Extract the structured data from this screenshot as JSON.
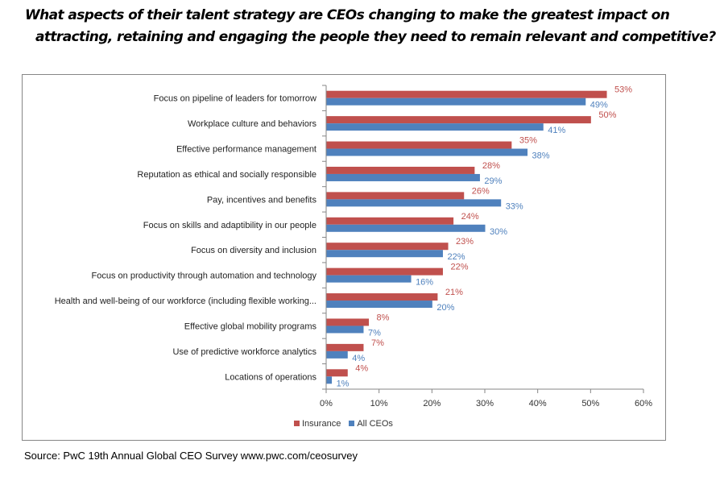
{
  "chart_data": {
    "type": "bar",
    "orientation": "horizontal",
    "title": "What aspects of their talent strategy are CEOs changing to make the greatest impact on attracting, retaining and engaging the people they need to remain relevant and competitive?",
    "title_lines": [
      "What aspects of their talent strategy are CEOs changing to make the greatest impact on",
      "attracting, retaining and engaging the people they need to remain relevant and competitive?"
    ],
    "categories": [
      "Focus on pipeline of leaders for tomorrow",
      "Workplace culture and behaviors",
      "Effective performance management",
      "Reputation as ethical and socially responsible",
      "Pay, incentives and benefits",
      "Focus on skills and adaptibility in our people",
      "Focus on diversity and inclusion",
      "Focus on productivity through automation and technology",
      "Health and well-being of our workforce (including flexible working...",
      "Effective global mobility programs",
      "Use of predictive workforce analytics",
      "Locations of operations"
    ],
    "series": [
      {
        "name": "Insurance",
        "color": "#C0504D",
        "values": [
          53,
          50,
          35,
          28,
          26,
          24,
          23,
          22,
          21,
          8,
          7,
          4
        ]
      },
      {
        "name": "All CEOs",
        "color": "#4F81BD",
        "values": [
          49,
          41,
          38,
          29,
          33,
          30,
          22,
          16,
          20,
          7,
          4,
          1
        ]
      }
    ],
    "xlim": [
      0,
      60
    ],
    "xticks": [
      "0%",
      "10%",
      "20%",
      "30%",
      "40%",
      "50%",
      "60%"
    ],
    "value_suffix": "%",
    "legend_position": "bottom",
    "grid": false
  },
  "source": "Source: PwC 19th Annual Global CEO Survey www.pwc.com/ceosurvey"
}
